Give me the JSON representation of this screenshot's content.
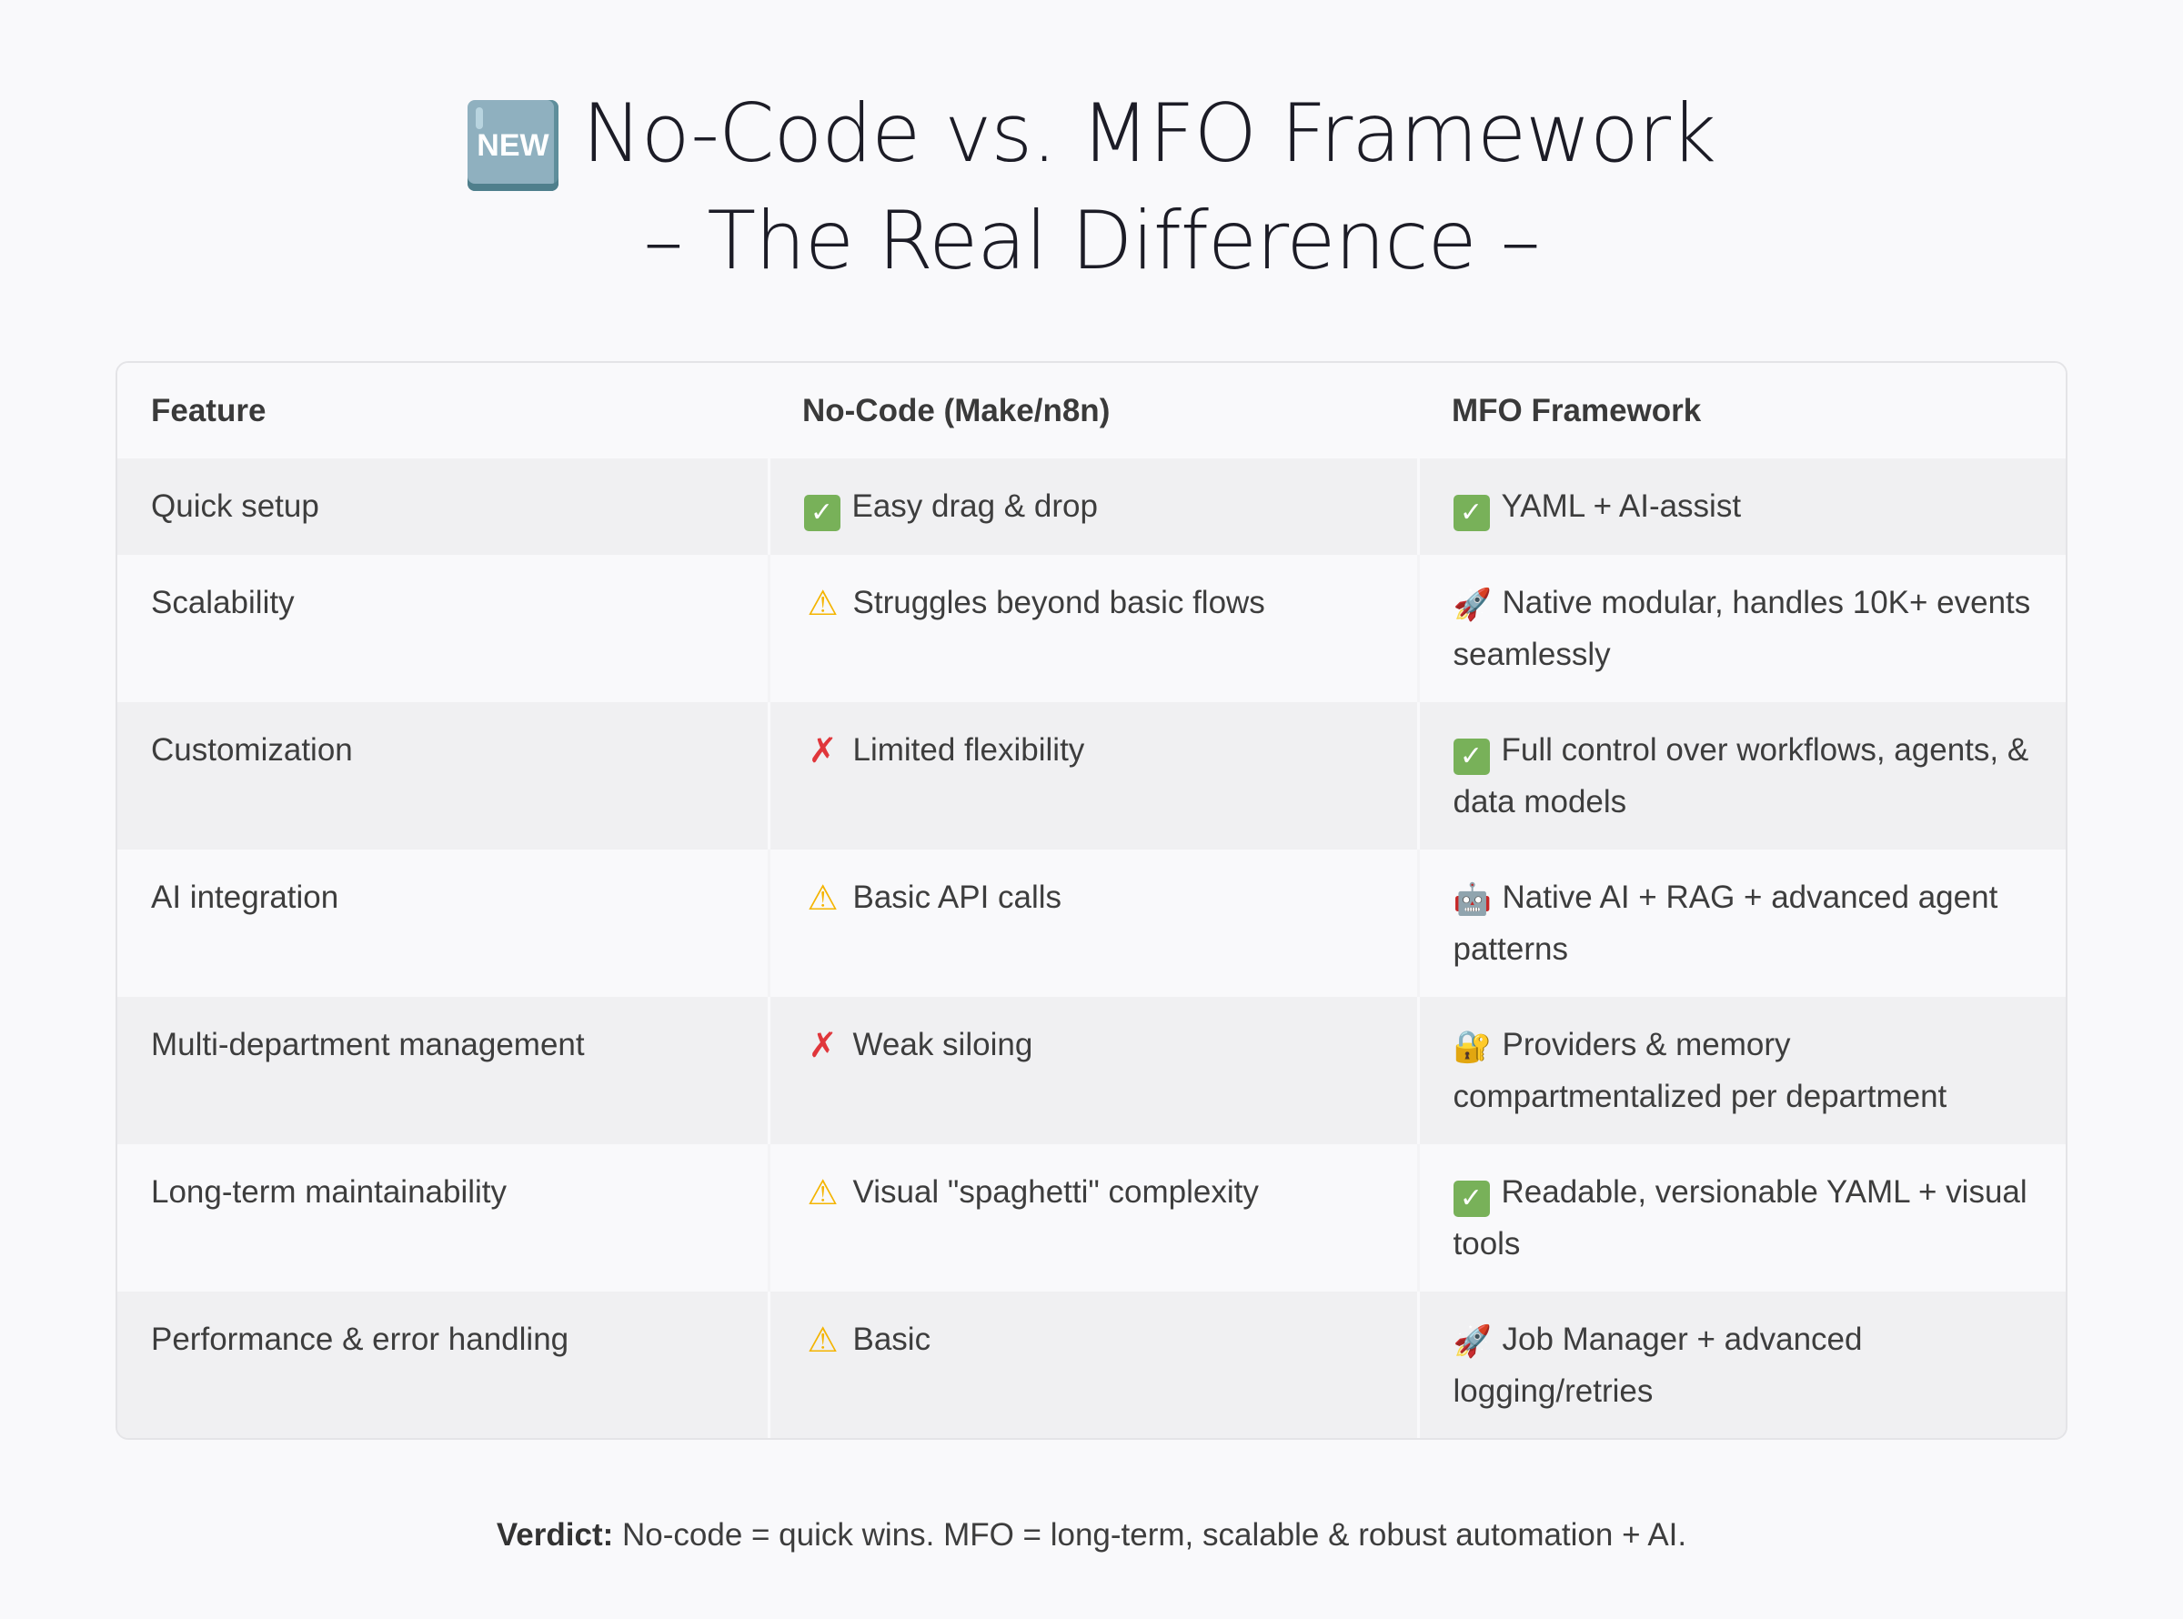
{
  "title": {
    "badge_icon": "new-button-icon",
    "badge_text": "NEW",
    "line1": "No-Code vs. MFO Framework",
    "line2": "– The Real Difference –",
    "color": "#1c1c26"
  },
  "table": {
    "headers": [
      "Feature",
      "No-Code (Make/n8n)",
      "MFO Framework"
    ],
    "rows": [
      {
        "feature": "Quick setup",
        "nocode": {
          "icon": "check-mark-icon",
          "glyph": "✓",
          "text": "Easy drag & drop"
        },
        "mfo": {
          "icon": "check-mark-icon",
          "glyph": "✓",
          "text": "YAML + AI-assist"
        }
      },
      {
        "feature": "Scalability",
        "nocode": {
          "icon": "warning-icon",
          "glyph": "⚠",
          "text": "Struggles beyond basic flows"
        },
        "mfo": {
          "icon": "rocket-icon",
          "glyph": "🚀",
          "text": "Native modular, handles 10K+ events seamlessly"
        }
      },
      {
        "feature": "Customization",
        "nocode": {
          "icon": "cross-mark-icon",
          "glyph": "✗",
          "text": "Limited flexibility"
        },
        "mfo": {
          "icon": "check-mark-icon",
          "glyph": "✓",
          "text": "Full control over workflows, agents, & data models"
        }
      },
      {
        "feature": "AI integration",
        "nocode": {
          "icon": "warning-icon",
          "glyph": "⚠",
          "text": "Basic API calls"
        },
        "mfo": {
          "icon": "robot-icon",
          "glyph": "🤖",
          "text": "Native AI + RAG + advanced agent patterns"
        }
      },
      {
        "feature": "Multi-department management",
        "nocode": {
          "icon": "cross-mark-icon",
          "glyph": "✗",
          "text": "Weak siloing"
        },
        "mfo": {
          "icon": "lock-with-key-icon",
          "glyph": "🔐",
          "text": "Providers & memory compartmentalized per department"
        }
      },
      {
        "feature": "Long-term maintainability",
        "nocode": {
          "icon": "warning-icon",
          "glyph": "⚠",
          "text": "Visual \"spaghetti\" complexity"
        },
        "mfo": {
          "icon": "check-mark-icon",
          "glyph": "✓",
          "text": "Readable, versionable YAML + visual tools"
        }
      },
      {
        "feature": "Performance & error handling",
        "nocode": {
          "icon": "warning-icon",
          "glyph": "⚠",
          "text": "Basic"
        },
        "mfo": {
          "icon": "rocket-icon",
          "glyph": "🚀",
          "text": "Job Manager + advanced logging/retries"
        }
      }
    ]
  },
  "verdict": {
    "label": "Verdict:",
    "text": " No-code = quick wins. MFO = long-term, scalable & robust automation + AI."
  },
  "colors": {
    "background": "#f9f9fb",
    "row_shaded": "#f0f0f2",
    "border": "#e4e4e7",
    "text": "#3d3d3d",
    "check": "#78b159",
    "warning": "#f4b400",
    "cross": "#e0363b"
  }
}
